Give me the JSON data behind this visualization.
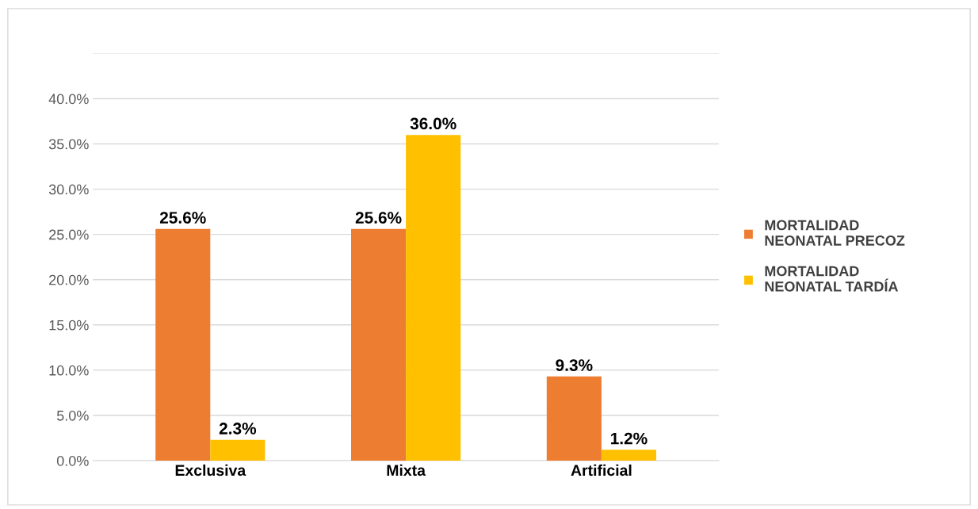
{
  "chart_data": {
    "type": "bar",
    "categories": [
      "Exclusiva",
      "Mixta",
      "Artificial"
    ],
    "series": [
      {
        "name": "MORTALIDAD NEONATAL PRECOZ",
        "color": "#ed7d31",
        "values": [
          25.6,
          25.6,
          9.3
        ],
        "value_labels": [
          "25.6%",
          "25.6%",
          "9.3%"
        ]
      },
      {
        "name": "MORTALIDAD NEONATAL TARDÍA",
        "color": "#ffc000",
        "values": [
          2.3,
          36.0,
          1.2
        ],
        "value_labels": [
          "2.3%",
          "36.0%",
          "1.2%"
        ]
      }
    ],
    "ylim": [
      0,
      45
    ],
    "yticks": [
      {
        "value": 0,
        "label": "0.0%"
      },
      {
        "value": 5,
        "label": "5.0%"
      },
      {
        "value": 10,
        "label": "10.0%"
      },
      {
        "value": 15,
        "label": "15.0%"
      },
      {
        "value": 20,
        "label": "20.0%"
      },
      {
        "value": 25,
        "label": "25.0%"
      },
      {
        "value": 30,
        "label": "30.0%"
      },
      {
        "value": 35,
        "label": "35.0%"
      },
      {
        "value": 40,
        "label": "40.0%"
      },
      {
        "value": 45,
        "label": null
      }
    ],
    "grid": "y",
    "legend": "right"
  }
}
